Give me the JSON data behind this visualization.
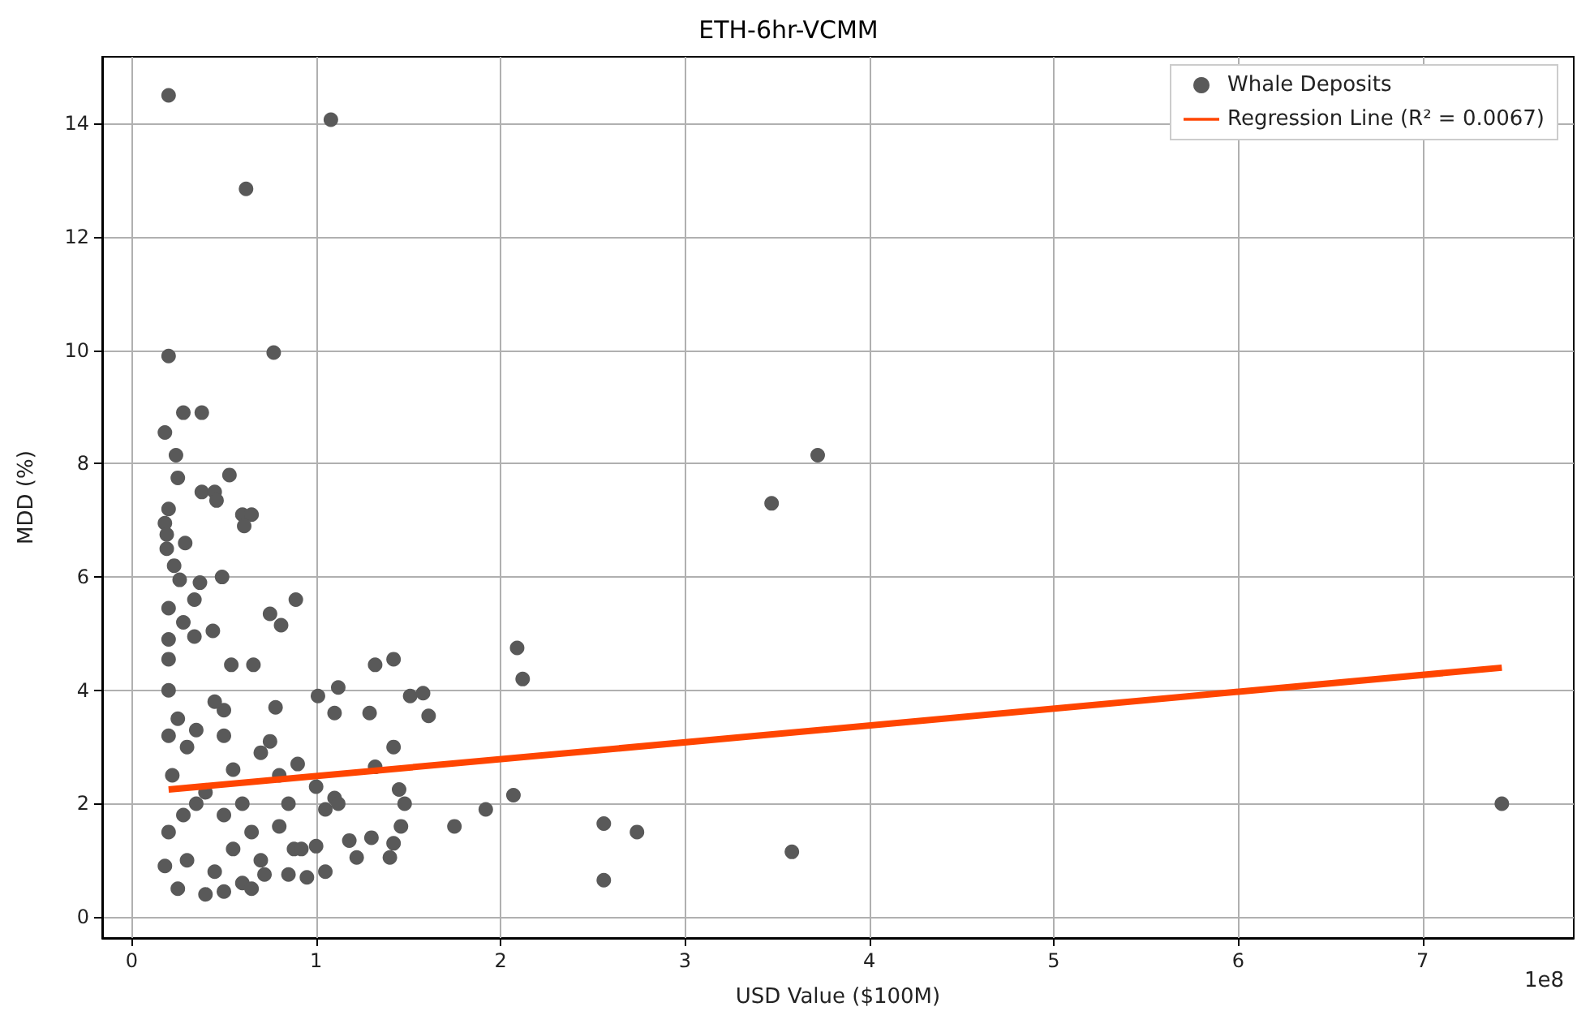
{
  "chart_data": {
    "type": "scatter",
    "title": "ETH-6hr-VCMM",
    "xlabel": "USD Value ($100M)",
    "ylabel": "MDD (%)",
    "annotations": [
      "1e8"
    ],
    "xlim": [
      -0.16,
      7.82
    ],
    "xticks": [
      0,
      1,
      2,
      3,
      4,
      5,
      6,
      7
    ],
    "ylim": [
      -0.37,
      15.18
    ],
    "yticks": [
      0,
      2,
      4,
      6,
      8,
      10,
      12,
      14
    ],
    "grid": true,
    "legend": "top right",
    "marker": "circle",
    "series": [
      {
        "name": "Whale Deposits",
        "color": "#595959",
        "x": [
          0.2,
          1.08,
          0.62,
          0.2,
          0.77,
          0.18,
          0.28,
          0.38,
          0.24,
          0.25,
          0.53,
          0.38,
          0.45,
          0.46,
          0.6,
          0.65,
          0.61,
          0.2,
          0.18,
          0.19,
          0.29,
          0.19,
          0.23,
          0.26,
          0.37,
          0.49,
          0.2,
          0.34,
          0.89,
          0.75,
          0.81,
          0.28,
          0.44,
          0.2,
          0.34,
          0.54,
          0.66,
          0.2,
          2.09,
          2.12,
          1.42,
          1.32,
          1.12,
          1.01,
          1.29,
          1.61,
          1.51,
          1.1,
          0.78,
          0.5,
          0.2,
          0.25,
          0.3,
          0.22,
          0.35,
          0.2,
          0.3,
          0.25,
          0.4,
          0.45,
          0.5,
          0.55,
          0.4,
          0.5,
          0.55,
          0.45,
          0.6,
          0.35,
          0.28,
          0.18,
          0.2,
          0.6,
          0.65,
          0.7,
          0.7,
          0.75,
          0.8,
          0.85,
          0.9,
          0.88,
          0.95,
          0.65,
          0.5,
          0.72,
          0.8,
          0.85,
          1.0,
          1.05,
          1.1,
          1.12,
          1.18,
          1.3,
          1.32,
          1.42,
          1.45,
          1.48,
          1.46,
          1.42,
          1.4,
          1.22,
          1.05,
          1.0,
          0.92,
          1.58,
          1.75,
          1.92,
          2.07,
          2.56,
          2.56,
          2.74,
          3.47,
          3.72,
          3.58,
          7.43
        ],
        "values": [
          14.5,
          14.07,
          12.85,
          9.9,
          9.96,
          8.55,
          8.9,
          8.9,
          8.15,
          7.75,
          7.8,
          7.5,
          7.5,
          7.35,
          7.1,
          7.1,
          6.9,
          7.2,
          6.95,
          6.75,
          6.6,
          6.5,
          6.2,
          5.95,
          5.9,
          6.0,
          5.45,
          5.6,
          5.6,
          5.35,
          5.15,
          5.2,
          5.05,
          4.9,
          4.95,
          4.45,
          4.45,
          4.55,
          4.75,
          4.2,
          4.55,
          4.45,
          4.05,
          3.9,
          3.6,
          3.55,
          3.9,
          3.6,
          3.7,
          3.65,
          4.0,
          3.5,
          3.0,
          2.5,
          2.0,
          1.5,
          1.0,
          0.5,
          0.4,
          3.8,
          3.2,
          2.6,
          2.2,
          1.8,
          1.2,
          0.8,
          0.6,
          3.3,
          1.8,
          0.9,
          3.2,
          2.0,
          1.5,
          1.0,
          2.9,
          3.1,
          2.5,
          2.0,
          2.7,
          1.2,
          0.7,
          0.5,
          0.45,
          0.75,
          1.6,
          0.75,
          2.3,
          1.9,
          2.1,
          2.0,
          1.35,
          1.4,
          2.65,
          3.0,
          2.25,
          2.0,
          1.6,
          1.3,
          1.05,
          1.05,
          0.8,
          1.25,
          1.2,
          3.95,
          1.6,
          1.9,
          2.15,
          1.65,
          0.65,
          1.5,
          7.3,
          8.15,
          1.15,
          2.0
        ]
      },
      {
        "name": "Regression Line (R² = 0.0067)",
        "type": "line",
        "color": "#ff4500",
        "line_style": "solid",
        "marker": "none",
        "x": [
          0.2,
          7.43
        ],
        "values": [
          2.25,
          4.4
        ]
      }
    ]
  }
}
